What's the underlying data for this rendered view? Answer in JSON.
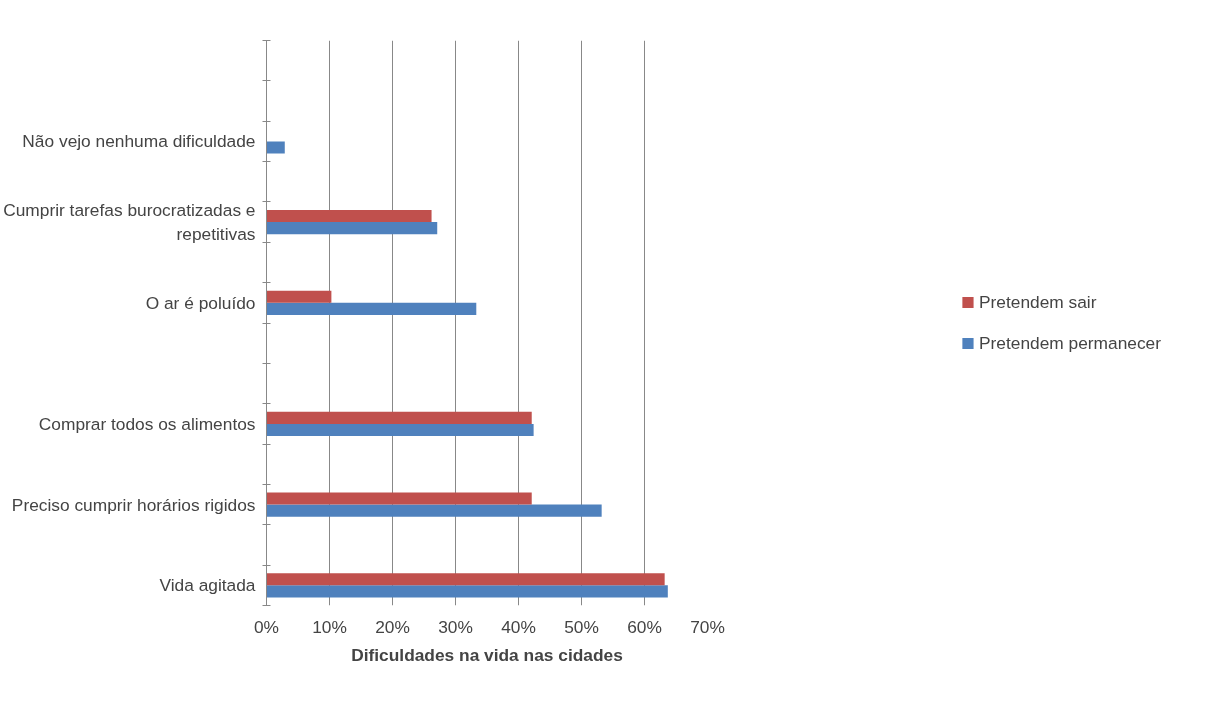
{
  "chart_data": {
    "type": "bar",
    "orientation": "horizontal",
    "xlabel": "Dificuldades na vida nas cidades",
    "categories": [
      null,
      null,
      "Não vejo nenhuma dificuldade",
      null,
      "Cumprir tarefas burocratizadas e repetitivas",
      null,
      "O ar é poluído",
      null,
      null,
      "Comprar todos os alimentos",
      null,
      "Preciso cumprir horários rigidos",
      null,
      "Vida agitada"
    ],
    "series": [
      {
        "name": "Pretendem permanecer",
        "color": "#4f81bd",
        "values": [
          null,
          null,
          2.9,
          null,
          27.1,
          null,
          33.3,
          null,
          null,
          42.4,
          null,
          53.2,
          null,
          63.7
        ]
      },
      {
        "name": "Pretendem sair",
        "color": "#c0504d",
        "values": [
          null,
          null,
          null,
          null,
          26.2,
          null,
          10.3,
          null,
          null,
          42.1,
          null,
          42.1,
          null,
          63.2
        ]
      }
    ],
    "xlim": [
      0,
      70
    ],
    "xticks": [
      {
        "value": 0,
        "label": "0%"
      },
      {
        "value": 10,
        "label": "10%"
      },
      {
        "value": 20,
        "label": "20%"
      },
      {
        "value": 30,
        "label": "30%"
      },
      {
        "value": 40,
        "label": "40%"
      },
      {
        "value": 50,
        "label": "50%"
      },
      {
        "value": 60,
        "label": "60%"
      },
      {
        "value": 70,
        "label": "70%"
      }
    ],
    "grid": "x",
    "legend": "right"
  }
}
